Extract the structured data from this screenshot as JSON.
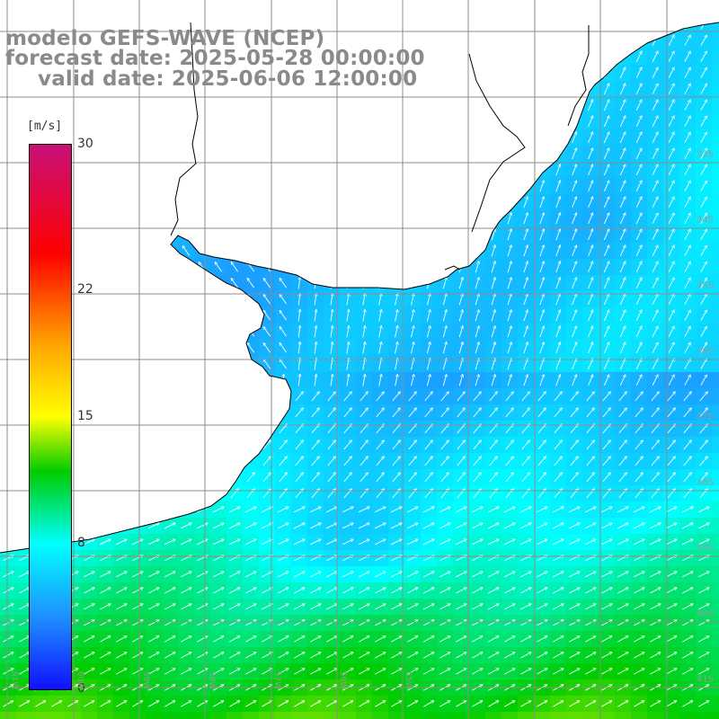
{
  "title": {
    "line1": "modelo GEFS-WAVE (NCEP)",
    "line2": "forecast date: 2025-05-28 00:00:00",
    "line3": "valid date: 2025-06-06 12:00:00"
  },
  "colorbar": {
    "unit_label": "[m/s]",
    "ticks": [
      "30",
      "22",
      "15",
      "8",
      "0"
    ],
    "tick_values": [
      30,
      22,
      15,
      8,
      0
    ],
    "min": 0,
    "max": 30,
    "stops": [
      {
        "v": 0,
        "color": "#1010ff"
      },
      {
        "v": 4,
        "color": "#1e90ff"
      },
      {
        "v": 8,
        "color": "#00ffff"
      },
      {
        "v": 12,
        "color": "#00cc00"
      },
      {
        "v": 15,
        "color": "#ffff00"
      },
      {
        "v": 19,
        "color": "#ffa500"
      },
      {
        "v": 24,
        "color": "#ff0000"
      },
      {
        "v": 30,
        "color": "#c8107a"
      }
    ]
  },
  "axes": {
    "lat_labels": [
      "33S",
      "34S",
      "35S",
      "36S",
      "37S",
      "38S",
      "39S",
      "40S",
      "41S"
    ],
    "lat_values": [
      -33,
      -34,
      -35,
      -36,
      -37,
      -38,
      -39,
      -40,
      -41
    ],
    "lon_labels": [
      "61W",
      "60W",
      "59W",
      "58W",
      "57W",
      "56W",
      "55W"
    ],
    "lon_values": [
      -61,
      -60,
      -59,
      -58,
      -57,
      -56,
      -55
    ]
  },
  "colors": {
    "land": "#ffffff",
    "coast": "#000000",
    "grid": "#8c8c8c",
    "arrows": "#ffffff",
    "title_text": "#8a8a8a"
  },
  "wind_field": {
    "variable": "wind speed",
    "units": "m/s",
    "typical_speed_nearshore": 6,
    "typical_speed_offshore_south": 11,
    "prevailing_direction": "from south-west"
  }
}
